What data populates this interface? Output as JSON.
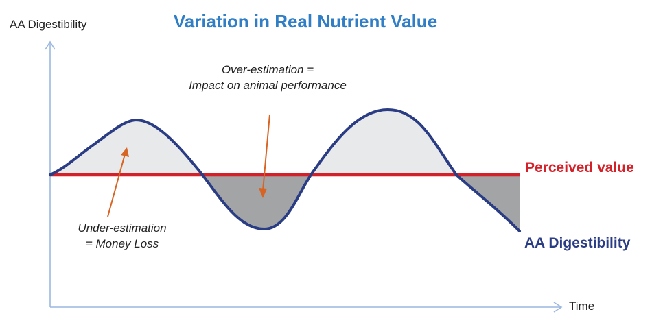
{
  "title": "Variation in Real Nutrient Value",
  "axes": {
    "y_label": "AA Digestibility",
    "x_label": "Time"
  },
  "legend": {
    "perceived_value": "Perceived value",
    "actual_curve": "AA Digestibility"
  },
  "annotations": {
    "over_estimation": [
      "Over-estimation =",
      "Impact on animal performance"
    ],
    "under_estimation": [
      "Under-estimation",
      "= Money Loss"
    ]
  },
  "colors": {
    "title": "#2f7ec6",
    "perceived_line": "#d42028",
    "curve": "#2a3c84",
    "under_fill": "#e8e9eb",
    "over_fill": "#a2a4a6",
    "axis": "#9bb7e0",
    "arrow": "#d86424"
  }
}
